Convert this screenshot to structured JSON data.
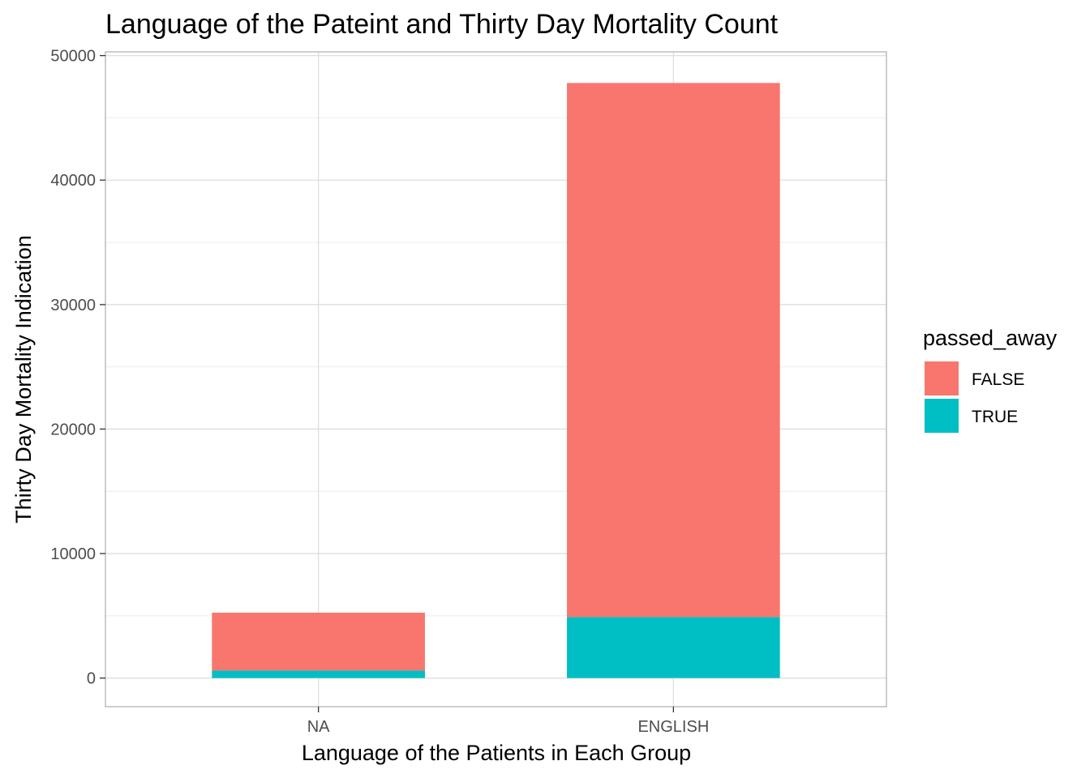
{
  "chart_data": {
    "type": "bar",
    "stacked": true,
    "title": "Language of the Pateint and Thirty Day Mortality Count",
    "xlabel": "Language of the Patients in Each Group",
    "ylabel": "Thirty Day Mortality Indication",
    "categories": [
      "NA",
      "ENGLISH"
    ],
    "series": [
      {
        "name": "FALSE",
        "color": "#F8766D",
        "values": [
          4650,
          42900
        ]
      },
      {
        "name": "TRUE",
        "color": "#00BFC4",
        "values": [
          600,
          4900
        ]
      }
    ],
    "ylim": [
      -2300,
      50300
    ],
    "yticks": [
      0,
      10000,
      20000,
      30000,
      40000,
      50000
    ],
    "ytick_labels": [
      "0",
      "10000",
      "20000",
      "30000",
      "40000",
      "50000"
    ],
    "grid": true,
    "legend": {
      "title": "passed_away",
      "placement": "right",
      "order": [
        "FALSE",
        "TRUE"
      ]
    }
  }
}
